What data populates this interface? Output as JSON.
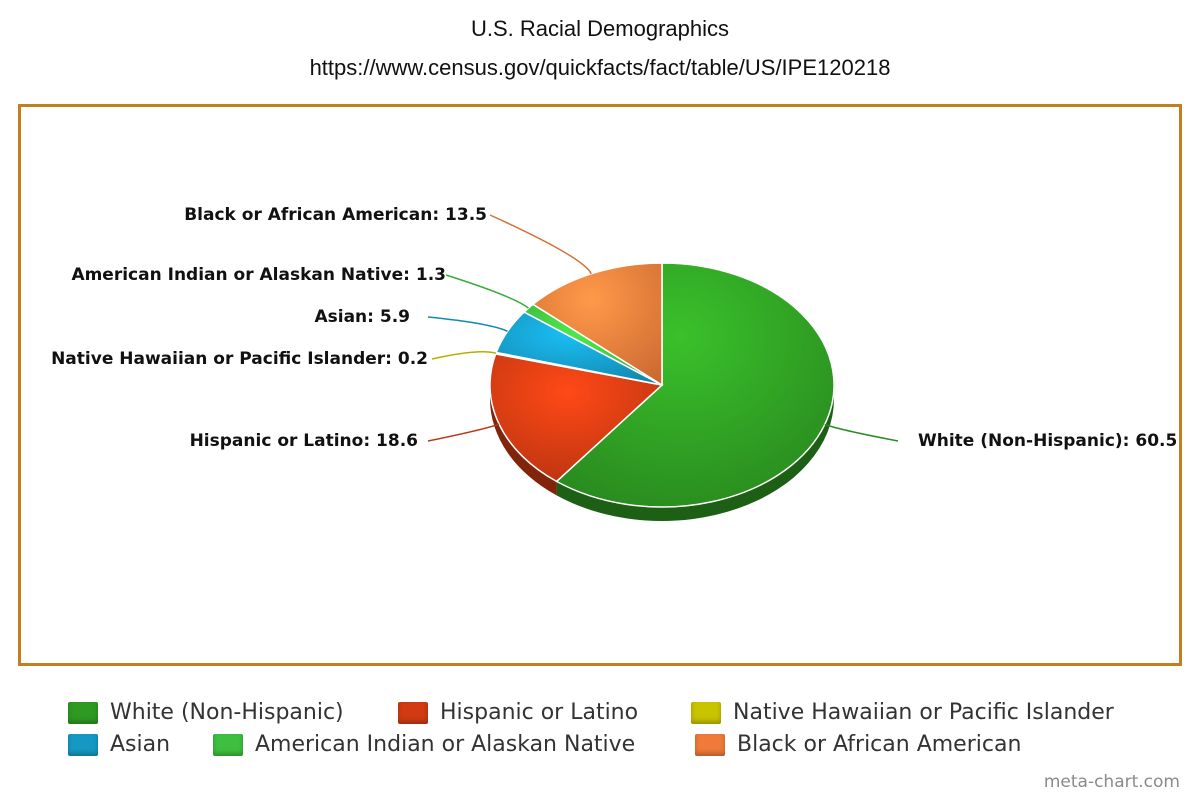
{
  "chart_data": {
    "type": "pie",
    "title": "U.S. Racial Demographics",
    "subtitle": "https://www.census.gov/quickfacts/fact/table/US/IPE120218",
    "categories": [
      "White (Non-Hispanic)",
      "Hispanic or Latino",
      "Native Hawaiian or Pacific Islander",
      "Asian",
      "American Indian or Alaskan Native",
      "Black or African American"
    ],
    "values": [
      60.5,
      18.6,
      0.2,
      5.9,
      1.3,
      13.5
    ],
    "slice_labels": [
      "White (Non-Hispanic): 60.5",
      "Hispanic or Latino: 18.6",
      "Native Hawaiian or Pacific Islander: 0.2",
      "Asian: 5.9",
      "American Indian or Alaskan Native: 1.3",
      "Black or African American: 13.5"
    ],
    "colors": [
      "#2e9a22",
      "#d13a12",
      "#c9c400",
      "#1599c4",
      "#3fbf3f",
      "#ef7a3a"
    ],
    "legend": {
      "position": "bottom",
      "entries": [
        "White (Non-Hispanic)",
        "Hispanic or Latino",
        "Native Hawaiian or Pacific Islander",
        "Asian",
        "American Indian or Alaskan Native",
        "Black or African American"
      ]
    },
    "three_d": true,
    "frame_color": "#c17f1f"
  },
  "watermark": "meta-chart.com"
}
